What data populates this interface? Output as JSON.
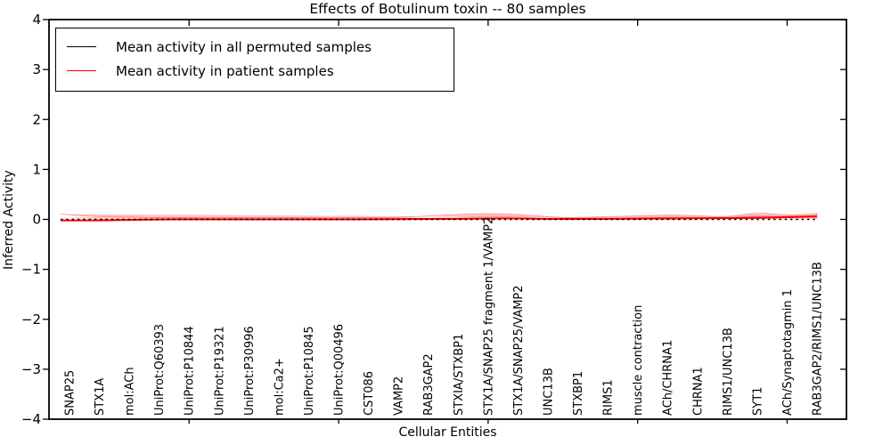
{
  "figure": {
    "title": "Effects of Botulinum toxin -- 80 samples"
  },
  "chart_data": {
    "type": "line",
    "title": "Effects of Botulinum toxin -- 80 samples",
    "xlabel": "Cellular Entities",
    "ylabel": "Inferred Activity",
    "ylim": [
      -4,
      4
    ],
    "yticks": [
      4,
      3,
      2,
      1,
      0,
      -1,
      -2,
      -3,
      -4
    ],
    "grid": false,
    "legend_position": "upper left",
    "major_x_tick_indices": [
      4,
      9,
      14,
      19,
      24
    ],
    "categories": [
      "SNAP25",
      "STX1A",
      "mol:ACh",
      "UniProt:Q60393",
      "UniProt:P10844",
      "UniProt:P19321",
      "UniProt:P30996",
      "mol:Ca2+",
      "UniProt:P10845",
      "UniProt:Q00496",
      "CST086",
      "VAMP2",
      "RAB3GAP2",
      "STXIA/STXBP1",
      "STX1A/SNAP25 fragment 1/VAMP2",
      "STX1A/SNAP25/VAMP2",
      "UNC13B",
      "STXBP1",
      "RIMS1",
      "muscle contraction",
      "ACh/CHRNA1",
      "CHRNA1",
      "RIMS1/UNC13B",
      "SYT1",
      "ACh/Synaptotagmin 1",
      "RAB3GAP2/RIMS1/UNC13B"
    ],
    "series": [
      {
        "name": "Mean activity in all permuted samples",
        "color": "#000000",
        "style": "dotted",
        "values": [
          0,
          0,
          0,
          0,
          0,
          0,
          0,
          0,
          0,
          0,
          0,
          0,
          0,
          0,
          0,
          0,
          0,
          0,
          0,
          0,
          0,
          0,
          0,
          0,
          0,
          0
        ]
      },
      {
        "name": "Mean activity in patient samples",
        "color": "#ff0000",
        "style": "solid",
        "values": [
          -0.02,
          -0.02,
          -0.01,
          0,
          0,
          0,
          0,
          0,
          0,
          0,
          0,
          0.005,
          0.01,
          0.01,
          0.02,
          0.02,
          0.01,
          0.01,
          0.01,
          0.015,
          0.02,
          0.02,
          0.025,
          0.03,
          0.045,
          0.06
        ]
      }
    ],
    "band": {
      "name": "patient sample activity spread",
      "color": "#ff0000",
      "alpha": 0.22,
      "upper": [
        0.09,
        0.05,
        0.05,
        0.03,
        0.025,
        0.025,
        0.03,
        0.03,
        0.025,
        0.025,
        0.03,
        0.04,
        0.07,
        0.1,
        0.12,
        0.1,
        0.05,
        0.035,
        0.06,
        0.07,
        0.095,
        0.075,
        0.045,
        0.14,
        0.08,
        0.12
      ],
      "lower": [
        -0.18,
        -0.07,
        -0.05,
        -0.03,
        -0.025,
        -0.025,
        -0.03,
        -0.03,
        -0.025,
        -0.025,
        -0.03,
        -0.035,
        -0.04,
        -0.05,
        -0.06,
        -0.05,
        -0.04,
        -0.03,
        -0.05,
        -0.06,
        -0.085,
        -0.06,
        -0.04,
        -0.08,
        -0.03,
        0.01
      ]
    }
  }
}
